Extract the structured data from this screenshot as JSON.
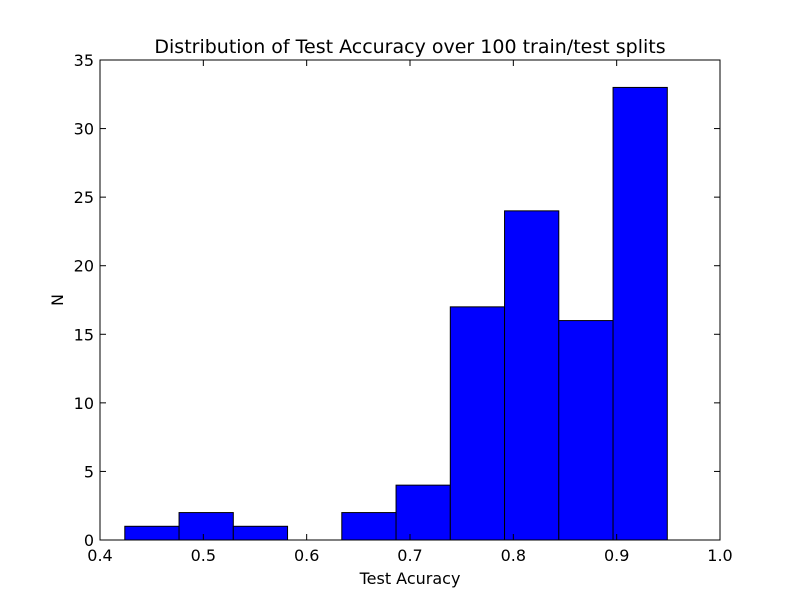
{
  "chart_data": {
    "type": "bar",
    "title": "Distribution of Test Accuracy over 100 train/test splits",
    "xlabel": "Test Acuracy",
    "ylabel": "N",
    "xlim": [
      0.4,
      1.0
    ],
    "ylim": [
      0,
      35
    ],
    "xticks": [
      "0.4",
      "0.5",
      "0.6",
      "0.7",
      "0.8",
      "0.9",
      "1.0"
    ],
    "yticks": [
      "0",
      "5",
      "10",
      "15",
      "20",
      "25",
      "30",
      "35"
    ],
    "bin_edges": [
      0.424,
      0.4765,
      0.529,
      0.5815,
      0.634,
      0.6865,
      0.739,
      0.7915,
      0.844,
      0.8965,
      0.949
    ],
    "values": [
      1,
      2,
      1,
      0,
      2,
      4,
      17,
      24,
      16,
      33
    ],
    "bar_color": "#0000ff",
    "edge_color": "#000000",
    "grid": false,
    "legend": "none"
  }
}
